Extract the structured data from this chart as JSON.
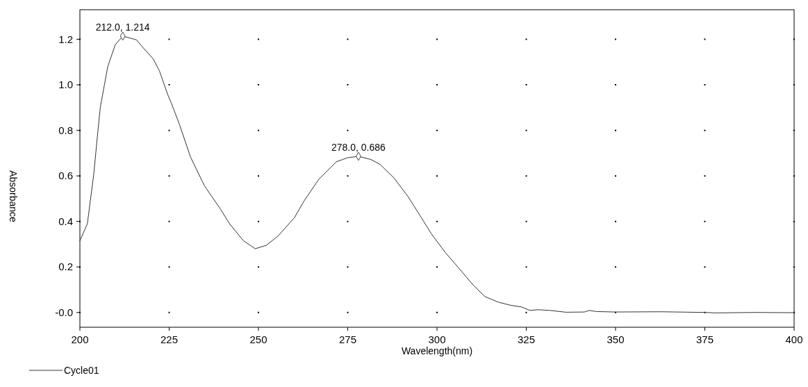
{
  "chart_data": {
    "type": "line",
    "xlabel": "Wavelength(nm)",
    "ylabel": "Absorbance",
    "xlim": [
      200,
      400
    ],
    "xticks": [
      200,
      225,
      250,
      275,
      300,
      325,
      350,
      375,
      400
    ],
    "ylim": [
      -0.065,
      1.33
    ],
    "yticks": [
      {
        "value": 0,
        "label": "-0.0"
      },
      0.2,
      0.4,
      0.6,
      0.8,
      {
        "value": 1,
        "label": "1.0"
      },
      1.2
    ],
    "grid": true,
    "legend": "bottom left",
    "marker": "none",
    "line_style": "solid",
    "annotations": [
      {
        "text": "212.0, 1.214",
        "x": 212,
        "y": 1.214
      },
      {
        "text": "278.0, 0.686",
        "x": 278,
        "y": 0.686
      }
    ],
    "series": [
      {
        "name": "Cycle01",
        "color": "#333333",
        "x": [
          200,
          202.1,
          203.9,
          205,
          205.7,
          207.8,
          209.9,
          212,
          215.8,
          218.1,
          220.5,
          222.3,
          224.6,
          225.6,
          227.9,
          231,
          234.9,
          239.4,
          241.9,
          245.8,
          249.1,
          252.2,
          255.5,
          260.1,
          262.7,
          266.9,
          271.8,
          275,
          278,
          281.5,
          284.1,
          288,
          291.9,
          295.2,
          298.4,
          302.3,
          306.2,
          310.1,
          313.4,
          317.2,
          320.5,
          323.7,
          326,
          328.3,
          331.6,
          336.1,
          341.3,
          342.6,
          344.6,
          349.7,
          362.7,
          375.7,
          377.7,
          388.7,
          400
        ],
        "values": [
          0.315,
          0.39,
          0.61,
          0.79,
          0.9,
          1.08,
          1.176,
          1.214,
          1.198,
          1.156,
          1.115,
          1.06,
          0.957,
          0.92,
          0.825,
          0.682,
          0.556,
          0.453,
          0.39,
          0.315,
          0.28,
          0.295,
          0.336,
          0.417,
          0.488,
          0.585,
          0.662,
          0.68,
          0.686,
          0.672,
          0.65,
          0.59,
          0.509,
          0.427,
          0.346,
          0.264,
          0.193,
          0.121,
          0.07,
          0.045,
          0.032,
          0.024,
          0.009,
          0.012,
          0.009,
          0.001,
          0.002,
          0.009,
          0.004,
          0.002,
          0.003,
          0,
          -0.002,
          0,
          -0.001
        ]
      }
    ]
  }
}
